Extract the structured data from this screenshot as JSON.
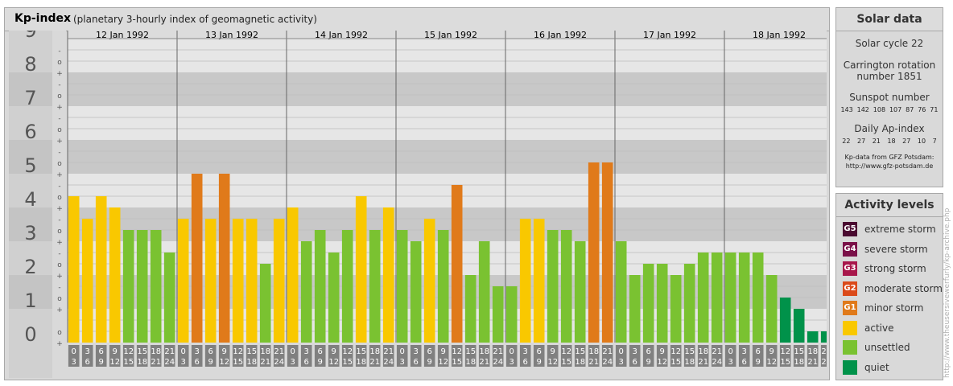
{
  "header": {
    "title": "Kp-index",
    "subtitle": "(planetary 3-hourly index of geomagnetic activity)"
  },
  "chart_data": {
    "type": "bar",
    "ylim": [
      0,
      9
    ],
    "y_ticks": [
      "0",
      "1",
      "2",
      "3",
      "4",
      "5",
      "6",
      "7",
      "8",
      "9"
    ],
    "minor_tick_labels": [
      "+",
      "o",
      "-"
    ],
    "days": [
      "12 Jan 1992",
      "13 Jan 1992",
      "14 Jan 1992",
      "15 Jan 1992",
      "16 Jan 1992",
      "17 Jan 1992",
      "18 Jan 1992"
    ],
    "interval_start_labels": [
      "0",
      "3",
      "6",
      "9",
      "12",
      "15",
      "18",
      "21"
    ],
    "interval_end_labels": [
      "3",
      "6",
      "9",
      "12",
      "15",
      "18",
      "21",
      "24"
    ],
    "values": [
      [
        4.333,
        3.667,
        4.333,
        4.0,
        3.333,
        3.333,
        3.333,
        2.667
      ],
      [
        3.667,
        5.0,
        3.667,
        5.0,
        3.667,
        3.667,
        2.333,
        3.667
      ],
      [
        4.0,
        3.0,
        3.333,
        2.667,
        3.333,
        4.333,
        3.333,
        4.0
      ],
      [
        3.333,
        3.0,
        3.667,
        3.333,
        4.667,
        2.0,
        3.0,
        1.667
      ],
      [
        1.667,
        3.667,
        3.667,
        3.333,
        3.333,
        3.0,
        5.333,
        5.333
      ],
      [
        3.0,
        2.0,
        2.333,
        2.333,
        2.0,
        2.333,
        2.667,
        2.667
      ],
      [
        2.667,
        2.667,
        2.667,
        2.0,
        1.333,
        1.0,
        0.333,
        0.333
      ]
    ],
    "level_colors": {
      "quiet": "#00924a",
      "unsettled": "#7ac231",
      "active": "#f9c800",
      "G1": "#e07a1a",
      "G2": "#db4a1a",
      "G3": "#a8174b",
      "G4": "#7a1048",
      "G5": "#4a0a30"
    }
  },
  "solar": {
    "title": "Solar data",
    "cycle": "Solar cycle 22",
    "carrington_1": "Carrington rotation",
    "carrington_2": "number 1851",
    "sunspot_label": "Sunspot number",
    "sunspot_values": [
      "143",
      "142",
      "108",
      "107",
      "87",
      "76",
      "71"
    ],
    "ap_label": "Daily Ap-index",
    "ap_values": [
      "22",
      "27",
      "21",
      "18",
      "27",
      "10",
      "7"
    ],
    "credit_1": "Kp-data from GFZ Potsdam:",
    "credit_2": "http://www.gfz-potsdam.de"
  },
  "activity": {
    "title": "Activity levels",
    "items": [
      {
        "code": "G5",
        "label": "extreme storm",
        "color": "#4a0a30"
      },
      {
        "code": "G4",
        "label": "severe storm",
        "color": "#7a1048"
      },
      {
        "code": "G3",
        "label": "strong storm",
        "color": "#a8174b"
      },
      {
        "code": "G2",
        "label": "moderate storm",
        "color": "#db4a1a"
      },
      {
        "code": "G1",
        "label": "minor storm",
        "color": "#e07a1a"
      },
      {
        "code": "",
        "label": "active",
        "color": "#f9c800"
      },
      {
        "code": "",
        "label": "unsettled",
        "color": "#7ac231"
      },
      {
        "code": "",
        "label": "quiet",
        "color": "#00924a"
      }
    ]
  },
  "watermark": "http://www.theusersivewerfurly/kp-archive.php"
}
